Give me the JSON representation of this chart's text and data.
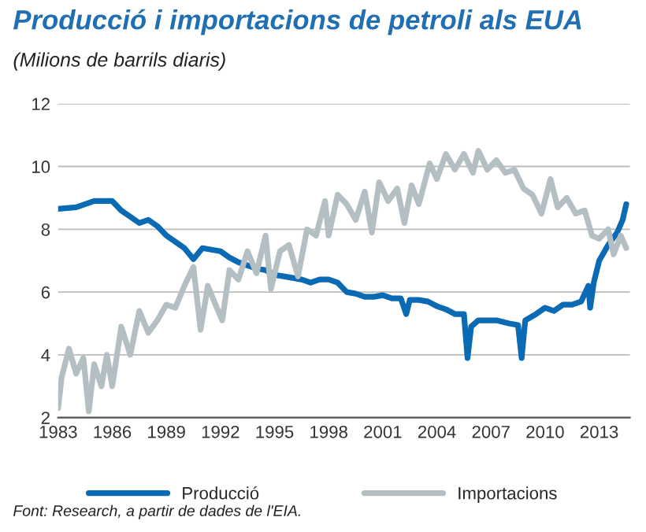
{
  "chart_data": {
    "type": "line",
    "title": "Producció i importacions de petroli als EUA",
    "subtitle": "(Milions de barrils diaris)",
    "annotations": [
      "Font: Research, a partir de dades de l'EIA."
    ],
    "xlim": [
      1983,
      2014.7
    ],
    "xticks": [
      1983,
      1986,
      1989,
      1992,
      1995,
      1998,
      2001,
      2004,
      2007,
      2010,
      2013
    ],
    "ylim": [
      2,
      12
    ],
    "yticks": [
      2,
      4,
      6,
      8,
      10,
      12
    ],
    "grid": "y",
    "legend": "bottom",
    "series": [
      {
        "name": "Producció",
        "color": "#0a6ab4",
        "x": [
          1983,
          1984,
          1985,
          1986,
          1986.5,
          1987,
          1987.5,
          1988,
          1988.5,
          1989,
          1989.5,
          1990,
          1990.5,
          1991,
          1991.5,
          1992,
          1992.5,
          1993,
          1993.5,
          1994,
          1994.5,
          1995,
          1995.5,
          1996,
          1996.5,
          1997,
          1997.5,
          1998,
          1998.5,
          1999,
          1999.5,
          2000,
          2000.5,
          2001,
          2001.5,
          2002,
          2002.3,
          2002.5,
          2003,
          2003.5,
          2004,
          2004.5,
          2005,
          2005.5,
          2005.7,
          2005.9,
          2006.3,
          2006.8,
          2007.3,
          2008,
          2008.5,
          2008.7,
          2008.9,
          2009.5,
          2010,
          2010.5,
          2011,
          2011.5,
          2012,
          2012.4,
          2012.5,
          2012.7,
          2013,
          2013.5,
          2014,
          2014.3,
          2014.5
        ],
        "values": [
          8.65,
          8.7,
          8.9,
          8.9,
          8.6,
          8.4,
          8.2,
          8.3,
          8.1,
          7.8,
          7.6,
          7.4,
          7.05,
          7.4,
          7.35,
          7.3,
          7.1,
          6.95,
          6.85,
          6.75,
          6.7,
          6.55,
          6.5,
          6.45,
          6.4,
          6.3,
          6.4,
          6.4,
          6.3,
          6.0,
          5.95,
          5.85,
          5.85,
          5.9,
          5.8,
          5.8,
          5.3,
          5.75,
          5.75,
          5.7,
          5.55,
          5.45,
          5.3,
          5.3,
          3.9,
          4.9,
          5.1,
          5.1,
          5.1,
          5.0,
          4.95,
          3.9,
          5.1,
          5.3,
          5.5,
          5.4,
          5.6,
          5.6,
          5.7,
          6.2,
          5.5,
          6.3,
          7.0,
          7.5,
          7.9,
          8.3,
          8.8
        ]
      },
      {
        "name": "Importacions",
        "color": "#b4bfc4",
        "x": [
          1983,
          1983.2,
          1983.6,
          1984,
          1984.4,
          1984.7,
          1985,
          1985.4,
          1985.7,
          1986,
          1986.5,
          1987,
          1987.5,
          1988,
          1988.5,
          1989,
          1989.5,
          1990,
          1990.5,
          1990.9,
          1991.3,
          1991.8,
          1992.1,
          1992.5,
          1993,
          1993.5,
          1994,
          1994.5,
          1994.8,
          1995.3,
          1995.8,
          1996.3,
          1996.8,
          1997.3,
          1997.8,
          1998,
          1998.5,
          1999,
          1999.5,
          2000,
          2000.4,
          2000.8,
          2001.3,
          2001.8,
          2002.2,
          2002.6,
          2003,
          2003.6,
          2004,
          2004.5,
          2005,
          2005.5,
          2006,
          2006.3,
          2006.8,
          2007.3,
          2007.8,
          2008.3,
          2008.8,
          2009.3,
          2009.8,
          2010.3,
          2010.7,
          2011.2,
          2011.7,
          2012.2,
          2012.6,
          2013,
          2013.5,
          2013.8,
          2014.2,
          2014.5
        ],
        "values": [
          2.3,
          3.3,
          4.2,
          3.4,
          3.9,
          2.2,
          3.7,
          3.0,
          4.0,
          3.0,
          4.9,
          4.0,
          5.4,
          4.7,
          5.1,
          5.6,
          5.5,
          6.2,
          6.8,
          4.8,
          6.2,
          5.5,
          5.1,
          6.7,
          6.4,
          7.3,
          6.6,
          7.8,
          6.1,
          7.3,
          7.5,
          6.5,
          8.0,
          7.8,
          8.9,
          7.8,
          9.1,
          8.8,
          8.3,
          9.2,
          7.9,
          9.5,
          8.9,
          9.3,
          8.2,
          9.4,
          8.8,
          10.1,
          9.6,
          10.4,
          9.9,
          10.4,
          9.8,
          10.5,
          9.9,
          10.2,
          9.8,
          9.9,
          9.3,
          9.1,
          8.5,
          9.6,
          8.7,
          9.0,
          8.5,
          8.6,
          7.8,
          7.7,
          8.0,
          7.2,
          7.8,
          7.4
        ]
      }
    ]
  }
}
